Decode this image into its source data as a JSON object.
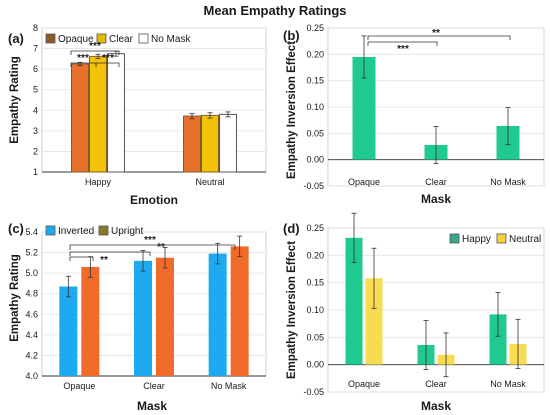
{
  "title": "Mean Empathy Ratings",
  "chart_data": [
    {
      "panel": "(a)",
      "type": "bar",
      "categories": [
        "Happy",
        "Neutral"
      ],
      "series": [
        {
          "name": "Opaque",
          "color": "#e8702a",
          "border": "#8b5a2b",
          "values": [
            6.25,
            3.72
          ],
          "errors": [
            0.08,
            0.13
          ]
        },
        {
          "name": "Clear",
          "color": "#f2c30a",
          "border": "#8b5a2b",
          "values": [
            6.62,
            3.75
          ],
          "errors": [
            0.1,
            0.13
          ]
        },
        {
          "name": "No Mask",
          "color": "#ffffff",
          "border": "#555555",
          "values": [
            6.75,
            3.8
          ],
          "errors": [
            0.12,
            0.12
          ]
        }
      ],
      "legend_swatches": [
        "#8b5a2b",
        "#e6b800",
        "#ffffff"
      ],
      "xlabel": "Emotion",
      "ylabel": "Empathy Rating",
      "ylim": [
        1,
        8
      ],
      "yticks": [
        "1",
        "2",
        "3",
        "4",
        "5",
        "6",
        "7",
        "8"
      ],
      "legend": "top-left",
      "significance": [
        "***",
        "***",
        "***"
      ]
    },
    {
      "panel": "(b)",
      "type": "bar",
      "categories": [
        "Opaque",
        "Clear",
        "No Mask"
      ],
      "values": [
        0.195,
        0.028,
        0.064
      ],
      "errors": [
        0.04,
        0.035,
        0.035
      ],
      "color": "#1fc990",
      "xlabel": "Mask",
      "ylabel": "Empathy Inversion Effect",
      "ylim": [
        -0.05,
        0.25
      ],
      "yticks": [
        "-0.05",
        "0.00",
        "0.05",
        "0.10",
        "0.15",
        "0.20",
        "0.25"
      ],
      "significance": [
        "***",
        "**"
      ]
    },
    {
      "panel": "(c)",
      "type": "bar",
      "categories": [
        "Opaque",
        "Clear",
        "No Mask"
      ],
      "series": [
        {
          "name": "Inverted",
          "color": "#1eaaf0",
          "values": [
            4.87,
            5.12,
            5.19
          ],
          "errors": [
            0.1,
            0.1,
            0.1
          ]
        },
        {
          "name": "Upright",
          "color": "#f06a2a",
          "values": [
            5.06,
            5.15,
            5.26
          ],
          "errors": [
            0.1,
            0.1,
            0.1
          ]
        }
      ],
      "legend_swatches": [
        "#1eaaf0",
        "#8b7a2b"
      ],
      "xlabel": "Mask",
      "ylabel": "Empathy Rating",
      "ylim": [
        4.0,
        5.4
      ],
      "yticks": [
        "4.0",
        "4.2",
        "4.4",
        "4.6",
        "4.8",
        "5.0",
        "5.2",
        "5.4"
      ],
      "legend": "top-left",
      "significance": [
        "***",
        "**",
        "**"
      ]
    },
    {
      "panel": "(d)",
      "type": "bar",
      "categories": [
        "Opaque",
        "Clear",
        "No Mask"
      ],
      "series": [
        {
          "name": "Happy",
          "color": "#1fc990",
          "values": [
            0.232,
            0.036,
            0.092
          ],
          "errors": [
            0.045,
            0.045,
            0.04
          ]
        },
        {
          "name": "Neutral",
          "color": "#f7dc52",
          "values": [
            0.158,
            0.018,
            0.038
          ],
          "errors": [
            0.055,
            0.04,
            0.045
          ]
        }
      ],
      "legend_swatches": [
        "#3aa88a",
        "#f2d43c"
      ],
      "xlabel": "Mask",
      "ylabel": "Empathy Inversion Effect",
      "ylim": [
        -0.05,
        0.25
      ],
      "yticks": [
        "-0.05",
        "0.00",
        "0.05",
        "0.10",
        "0.15",
        "0.20",
        "0.25"
      ],
      "legend": "top-right"
    }
  ]
}
